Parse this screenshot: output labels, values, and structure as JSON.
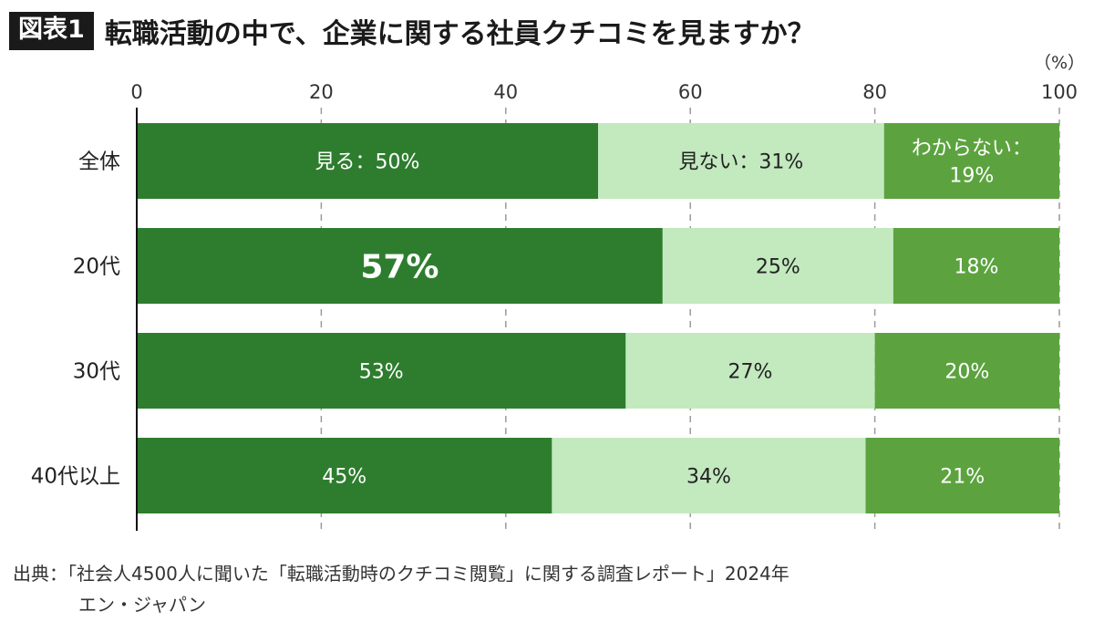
{
  "header": {
    "badge": "図表1",
    "title": "転職活動の中で、企業に関する社員クチコミを見ますか？"
  },
  "source": {
    "line1": "出典：「社会人4500人に聞いた「転職活動時のクチコミ閲覧」に関する調査レポート」2024年",
    "line2": "エン・ジャパン"
  },
  "colors": {
    "series1": "#2e7d2e",
    "series2": "#c3e9bf",
    "series3": "#5ca33f"
  },
  "chart_data": {
    "type": "bar",
    "orientation": "horizontal",
    "stacked": true,
    "unit_label": "（%）",
    "xlim": [
      0,
      100
    ],
    "x_ticks": [
      0,
      20,
      40,
      60,
      80,
      100
    ],
    "grid": true,
    "categories": [
      "全体",
      "20代",
      "30代",
      "40代以上"
    ],
    "series": [
      {
        "name": "見る",
        "values": [
          50,
          57,
          53,
          45
        ],
        "labels": [
          "見る：50%",
          "57%",
          "53%",
          "45%"
        ]
      },
      {
        "name": "見ない",
        "values": [
          31,
          25,
          27,
          34
        ],
        "labels": [
          "見ない：31%",
          "25%",
          "27%",
          "34%"
        ]
      },
      {
        "name": "わからない",
        "values": [
          19,
          18,
          20,
          21
        ],
        "labels": [
          "わからない：\n19%",
          "18%",
          "20%",
          "21%"
        ]
      }
    ],
    "emphasized_label": {
      "series": 0,
      "category": 1
    }
  }
}
